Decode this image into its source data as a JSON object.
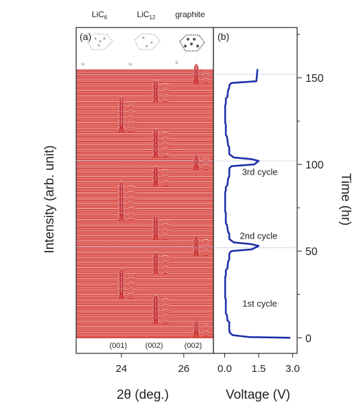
{
  "chart_data": [
    {
      "panel": "(a)",
      "type": "line",
      "xlabel": "2θ (deg.)",
      "ylabel": "Intensity (arb. unit)",
      "xticks": [
        24,
        26
      ],
      "xlim": [
        22.55,
        26.95
      ],
      "phases_top": [
        "LiC6",
        "LiC12",
        "graphite"
      ],
      "phase_labels_top": [
        {
          "base": "LiC",
          "sub": "6"
        },
        {
          "base": "LiC",
          "sub": "12"
        },
        {
          "base": "graphite",
          "sub": ""
        }
      ],
      "reflections": [
        {
          "label": "(001)",
          "x": 23.9
        },
        {
          "label": "(002)",
          "x": 25.05
        },
        {
          "label": "(002)",
          "x": 26.3
        }
      ],
      "stacked_scan_time_range_hr": [
        0,
        155
      ],
      "stacked_scan_count": 150,
      "peak_positions_2theta": {
        "LiC6": 24.0,
        "LiC12": 25.1,
        "graphite": 26.4
      },
      "peak_phase_by_time_hr": [
        {
          "from": 0,
          "to": 8,
          "phase": "graphite"
        },
        {
          "from": 8,
          "to": 22,
          "phase": "LiC12"
        },
        {
          "from": 22,
          "to": 37,
          "phase": "LiC6"
        },
        {
          "from": 37,
          "to": 47,
          "phase": "LiC12"
        },
        {
          "from": 47,
          "to": 56,
          "phase": "graphite"
        },
        {
          "from": 56,
          "to": 68,
          "phase": "LiC12"
        },
        {
          "from": 68,
          "to": 87,
          "phase": "LiC6"
        },
        {
          "from": 87,
          "to": 97,
          "phase": "LiC12"
        },
        {
          "from": 97,
          "to": 104,
          "phase": "graphite"
        },
        {
          "from": 104,
          "to": 118,
          "phase": "LiC12"
        },
        {
          "from": 118,
          "to": 136,
          "phase": "LiC6"
        },
        {
          "from": 136,
          "to": 146,
          "phase": "LiC12"
        },
        {
          "from": 146,
          "to": 155,
          "phase": "graphite"
        }
      ]
    },
    {
      "panel": "(b)",
      "type": "line",
      "xlabel": "Voltage (V)",
      "ylabel": "Time (hr)",
      "xticks": [
        0.0,
        1.5,
        3.0
      ],
      "yticks": [
        0,
        50,
        100,
        150
      ],
      "xlim": [
        -0.5,
        3.2
      ],
      "ylim": [
        -9,
        179
      ],
      "cycle_labels": [
        {
          "text": "1st cycle",
          "voltage": 1.55,
          "time": 20
        },
        {
          "text": "2nd cycle",
          "voltage": 1.5,
          "time": 59
        },
        {
          "text": "3rd cycle",
          "voltage": 1.55,
          "time": 96
        }
      ],
      "series": [
        {
          "color": "#1f2fa8",
          "voltage": [
            2.9,
            1.1,
            0.35,
            0.22,
            0.2,
            0.2,
            0.12,
            0.1,
            0.05,
            0.05,
            0.02,
            0.02,
            0.05,
            0.05,
            0.12,
            0.15,
            0.2,
            0.2,
            0.22,
            0.3,
            1.2,
            1.5,
            1.2,
            0.4,
            0.3,
            0.2,
            0.2,
            0.15,
            0.1,
            0.05,
            0.05,
            0.02,
            0.02,
            0.05,
            0.05,
            0.12,
            0.15,
            0.2,
            0.2,
            0.22,
            0.3,
            1.3,
            1.5,
            1.2,
            0.4,
            0.3,
            0.2,
            0.2,
            0.15,
            0.1,
            0.05,
            0.05,
            0.02,
            0.02,
            0.05,
            0.05,
            0.12,
            0.15,
            0.2,
            0.2,
            0.22,
            0.3,
            1.4,
            1.45
          ],
          "time": [
            0,
            0.4,
            1.5,
            3,
            5,
            9,
            10,
            13,
            14,
            22,
            23,
            35,
            36,
            39,
            40,
            44,
            45,
            48,
            49,
            50,
            51,
            53,
            54,
            55,
            56,
            57,
            60,
            61,
            65,
            66,
            72,
            73,
            84,
            85,
            87,
            88,
            92,
            93,
            97,
            98,
            99,
            100,
            102,
            103,
            104,
            105,
            106,
            110,
            111,
            116,
            117,
            123,
            124,
            134,
            135,
            138,
            139,
            143,
            144,
            145,
            146,
            147,
            148,
            155
          ]
        }
      ]
    }
  ]
}
